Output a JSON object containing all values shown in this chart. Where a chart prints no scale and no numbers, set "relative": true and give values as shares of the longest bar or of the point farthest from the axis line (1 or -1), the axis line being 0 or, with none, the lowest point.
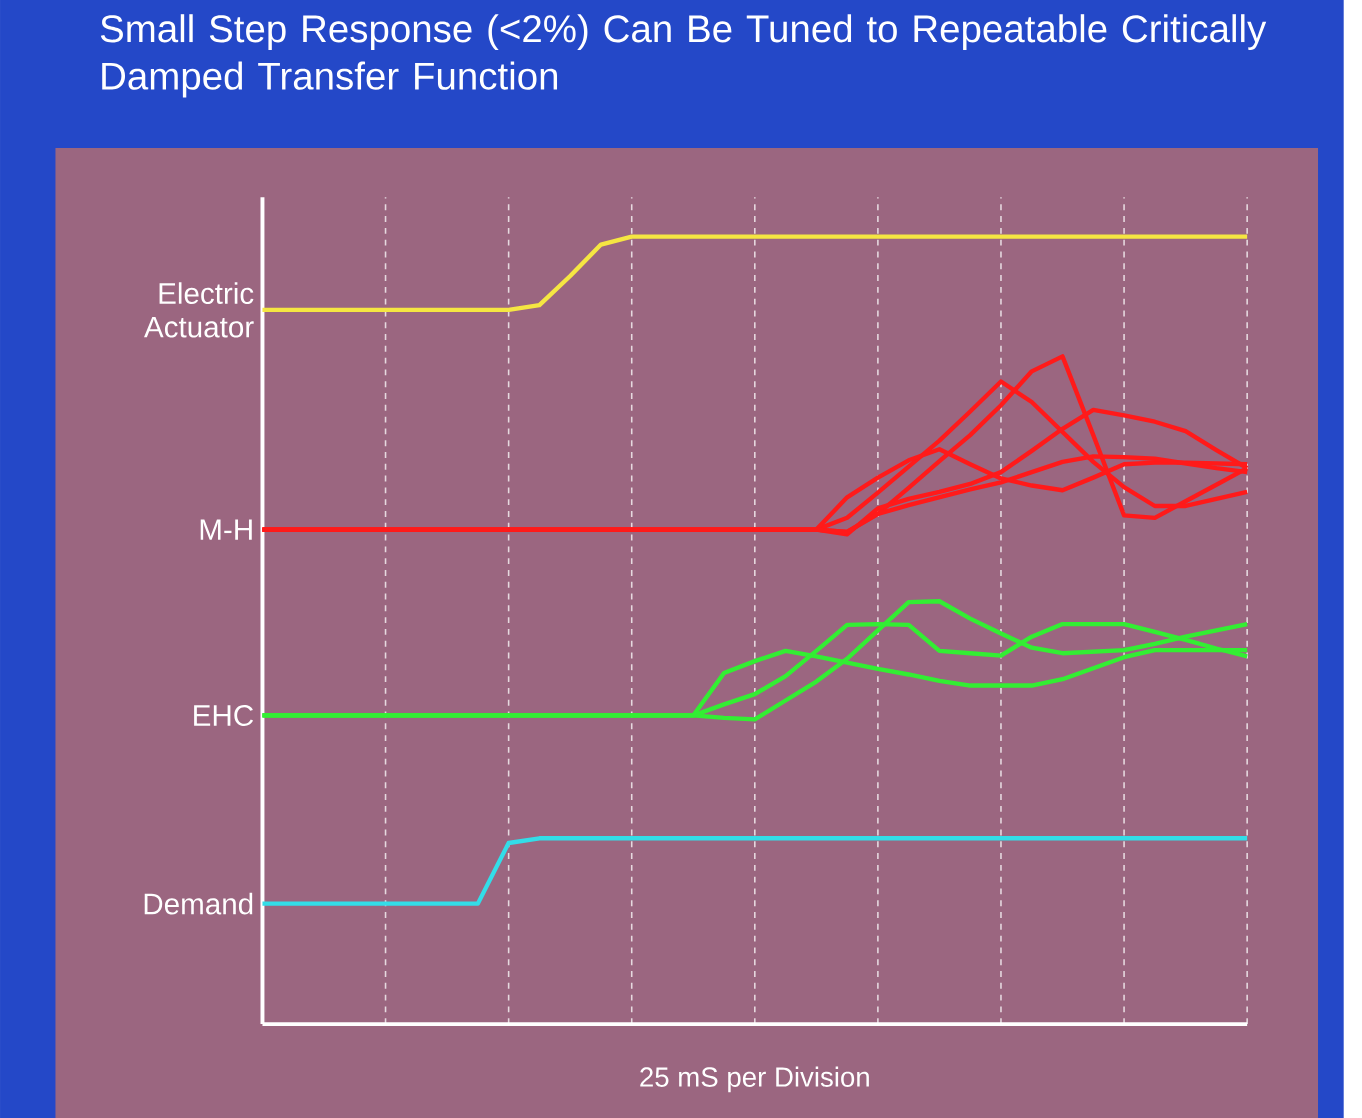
{
  "chart_data": {
    "type": "line",
    "title": "Small Step Response (<2%) Can Be Tuned to Repeatable Critically Damped Transfer Function",
    "xlabel": "25 mS per Division",
    "relative": true,
    "grid": "x",
    "categories": [
      null,
      null,
      null,
      null,
      null,
      null,
      null,
      null,
      null,
      null,
      null,
      null,
      null,
      null,
      null,
      null,
      null,
      null,
      null,
      null,
      null,
      null,
      null,
      null,
      null,
      null,
      null,
      null,
      null,
      null,
      null,
      null,
      null
    ],
    "series": [
      {
        "name": "Electric Actuator",
        "color": "#f5e642",
        "values": [
          0.907,
          0.907,
          0.907,
          0.907,
          0.907,
          0.907,
          0.907,
          0.907,
          0.907,
          0.913,
          0.95,
          0.99,
          1.0,
          1.0,
          1.0,
          1.0,
          1.0,
          1.0,
          1.0,
          1.0,
          1.0,
          1.0,
          1.0,
          1.0,
          1.0,
          1.0,
          1.0,
          1.0,
          1.0,
          1.0,
          1.0,
          1.0,
          1.0
        ]
      },
      {
        "name": "M-H",
        "color": "#ff1a1a",
        "values": [
          0.628,
          0.628,
          0.628,
          0.628,
          0.628,
          0.628,
          0.628,
          0.628,
          0.628,
          0.628,
          0.628,
          0.628,
          0.628,
          0.628,
          0.628,
          0.628,
          0.628,
          0.628,
          0.628,
          0.625,
          0.648,
          0.681,
          0.715,
          0.748,
          0.786,
          0.829,
          0.848,
          0.748,
          0.646,
          0.643,
          0.664,
          0.685,
          0.706
        ]
      },
      {
        "color": "#ff1a1a",
        "values": [
          0.628,
          0.628,
          0.628,
          0.628,
          0.628,
          0.628,
          0.628,
          0.628,
          0.628,
          0.628,
          0.628,
          0.628,
          0.628,
          0.628,
          0.628,
          0.628,
          0.628,
          0.628,
          0.628,
          0.643,
          0.675,
          0.708,
          0.741,
          0.778,
          0.816,
          0.79,
          0.752,
          0.714,
          0.682,
          0.658,
          0.658,
          0.667,
          0.676
        ]
      },
      {
        "color": "#ff1a1a",
        "values": [
          0.628,
          0.628,
          0.628,
          0.628,
          0.628,
          0.628,
          0.628,
          0.628,
          0.628,
          0.628,
          0.628,
          0.628,
          0.628,
          0.628,
          0.628,
          0.628,
          0.628,
          0.628,
          0.628,
          0.622,
          0.655,
          0.667,
          0.676,
          0.686,
          0.701,
          0.728,
          0.756,
          0.78,
          0.773,
          0.765,
          0.753,
          0.729,
          0.706
        ]
      },
      {
        "color": "#ff1a1a",
        "values": [
          0.628,
          0.628,
          0.628,
          0.628,
          0.628,
          0.628,
          0.628,
          0.628,
          0.628,
          0.628,
          0.628,
          0.628,
          0.628,
          0.628,
          0.628,
          0.628,
          0.628,
          0.628,
          0.628,
          0.669,
          0.694,
          0.716,
          0.73,
          0.711,
          0.693,
          0.684,
          0.678,
          0.694,
          0.711,
          0.713,
          0.713,
          0.712,
          0.711
        ]
      },
      {
        "color": "#ff1a1a",
        "values": [
          0.628,
          0.628,
          0.628,
          0.628,
          0.628,
          0.628,
          0.628,
          0.628,
          0.628,
          0.628,
          0.628,
          0.628,
          0.628,
          0.628,
          0.628,
          0.628,
          0.628,
          0.628,
          0.628,
          0.625,
          0.648,
          0.659,
          0.669,
          0.679,
          0.688,
          0.701,
          0.714,
          0.721,
          0.72,
          0.718,
          0.712,
          0.706,
          0.701
        ]
      },
      {
        "name": "EHC",
        "color": "#33ee33",
        "values": [
          0.392,
          0.392,
          0.392,
          0.392,
          0.392,
          0.392,
          0.392,
          0.392,
          0.392,
          0.392,
          0.392,
          0.392,
          0.392,
          0.392,
          0.392,
          0.389,
          0.387,
          0.411,
          0.435,
          0.464,
          0.5,
          0.536,
          0.537,
          0.515,
          0.496,
          0.478,
          0.471,
          0.473,
          0.475,
          0.483,
          0.492,
          0.5,
          0.508
        ]
      },
      {
        "color": "#33ee33",
        "values": [
          0.392,
          0.392,
          0.392,
          0.392,
          0.392,
          0.392,
          0.392,
          0.392,
          0.392,
          0.392,
          0.392,
          0.392,
          0.392,
          0.392,
          0.392,
          0.446,
          0.461,
          0.474,
          0.467,
          0.459,
          0.451,
          0.444,
          0.436,
          0.43,
          0.43,
          0.43,
          0.438,
          0.452,
          0.466,
          0.475,
          0.475,
          0.475,
          0.475
        ]
      },
      {
        "color": "#33ee33",
        "values": [
          0.392,
          0.392,
          0.392,
          0.392,
          0.392,
          0.392,
          0.392,
          0.392,
          0.392,
          0.392,
          0.392,
          0.392,
          0.392,
          0.392,
          0.392,
          0.406,
          0.419,
          0.442,
          0.474,
          0.507,
          0.508,
          0.507,
          0.474,
          0.471,
          0.468,
          0.492,
          0.508,
          0.508,
          0.508,
          0.498,
          0.488,
          0.477,
          0.467
        ]
      },
      {
        "name": "Demand",
        "color": "#33dde8",
        "values": [
          0.153,
          0.153,
          0.153,
          0.153,
          0.153,
          0.153,
          0.153,
          0.153,
          0.23,
          0.236,
          0.236,
          0.236,
          0.236,
          0.236,
          0.236,
          0.236,
          0.236,
          0.236,
          0.236,
          0.236,
          0.236,
          0.236,
          0.236,
          0.236,
          0.236,
          0.236,
          0.236,
          0.236,
          0.236,
          0.236,
          0.236,
          0.236,
          0.236
        ]
      }
    ]
  }
}
